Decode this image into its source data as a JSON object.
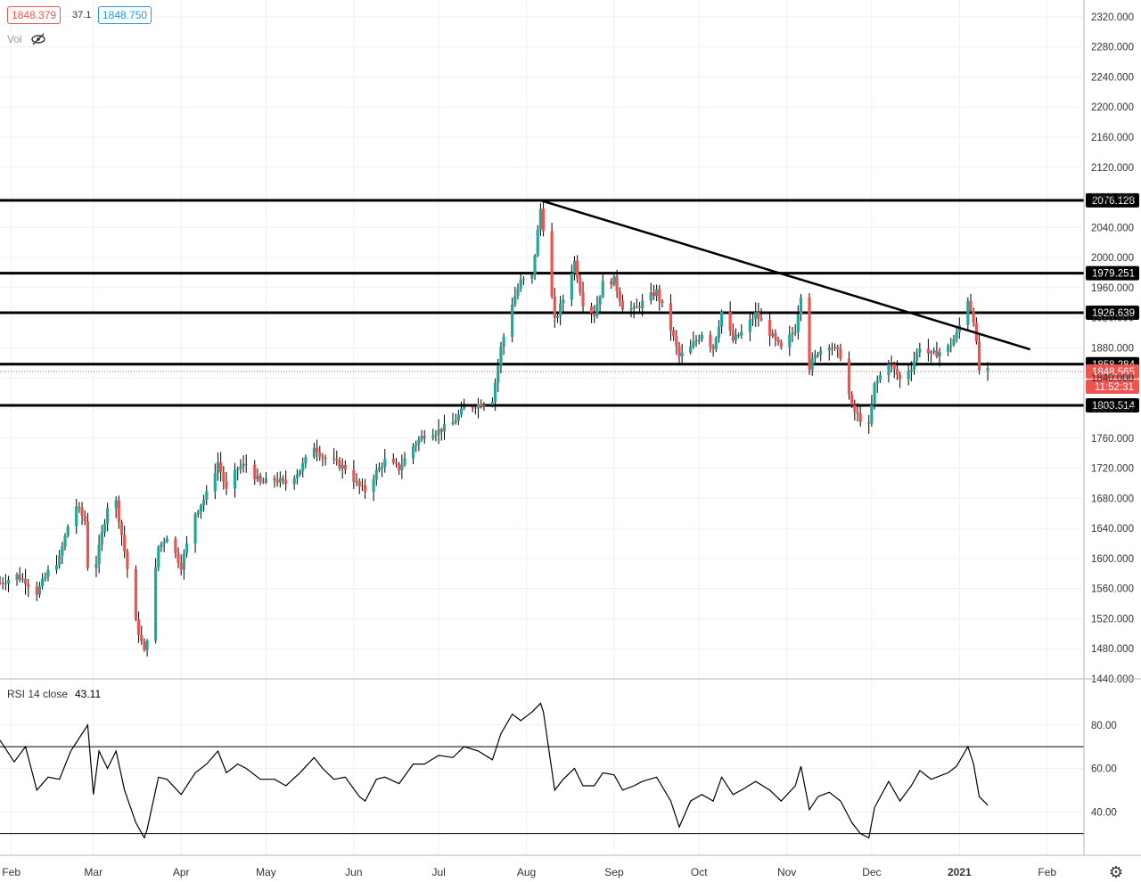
{
  "legend": {
    "bid": "1848.379",
    "spread": "37.1",
    "ask": "1848.750",
    "vol_label": "Vol",
    "vol_icon": "eye-crossed-icon"
  },
  "rsi_legend": {
    "label": "RSI 14 close",
    "value": "43.11"
  },
  "colors": {
    "up": "#26a69a",
    "down": "#ef5350",
    "line": "#000000",
    "grid": "#eef0f3",
    "axis_text": "#333333"
  },
  "chart_data": [
    {
      "type": "candlestick",
      "title": "",
      "x_range": [
        "2020-01-28",
        "2021-02-14"
      ],
      "ylim": [
        1440,
        2340
      ],
      "y_ticks": [
        1440,
        1480,
        1520,
        1560,
        1600,
        1640,
        1680,
        1720,
        1760,
        1800,
        1840,
        1880,
        1920,
        1960,
        2000,
        2040,
        2080,
        2120,
        2160,
        2200,
        2240,
        2280,
        2320
      ],
      "x_ticks": [
        {
          "date": "2020-02-01",
          "label": "Feb"
        },
        {
          "date": "2020-03-01",
          "label": "Mar"
        },
        {
          "date": "2020-04-01",
          "label": "Apr"
        },
        {
          "date": "2020-05-01",
          "label": "May"
        },
        {
          "date": "2020-06-01",
          "label": "Jun"
        },
        {
          "date": "2020-07-01",
          "label": "Jul"
        },
        {
          "date": "2020-08-01",
          "label": "Aug"
        },
        {
          "date": "2020-09-01",
          "label": "Sep"
        },
        {
          "date": "2020-10-01",
          "label": "Oct"
        },
        {
          "date": "2020-11-01",
          "label": "Nov"
        },
        {
          "date": "2020-12-01",
          "label": "Dec"
        },
        {
          "date": "2021-01-01",
          "label": "2021",
          "bold": true
        },
        {
          "date": "2021-02-01",
          "label": "Feb"
        }
      ],
      "close_series": [
        [
          "2020-01-28",
          1568
        ],
        [
          "2020-02-03",
          1577
        ],
        [
          "2020-02-06",
          1570
        ],
        [
          "2020-02-10",
          1555
        ],
        [
          "2020-02-14",
          1582
        ],
        [
          "2020-02-18",
          1600
        ],
        [
          "2020-02-21",
          1643
        ],
        [
          "2020-02-24",
          1670
        ],
        [
          "2020-02-27",
          1650
        ],
        [
          "2020-02-28",
          1590
        ],
        [
          "2020-03-02",
          1595
        ],
        [
          "2020-03-06",
          1670
        ],
        [
          "2020-03-09",
          1675
        ],
        [
          "2020-03-12",
          1610
        ],
        [
          "2020-03-16",
          1515
        ],
        [
          "2020-03-19",
          1475
        ],
        [
          "2020-03-20",
          1495
        ],
        [
          "2020-03-24",
          1615
        ],
        [
          "2020-03-27",
          1630
        ],
        [
          "2020-04-01",
          1590
        ],
        [
          "2020-04-06",
          1660
        ],
        [
          "2020-04-10",
          1685
        ],
        [
          "2020-04-14",
          1728
        ],
        [
          "2020-04-17",
          1690
        ],
        [
          "2020-04-21",
          1720
        ],
        [
          "2020-04-24",
          1725
        ],
        [
          "2020-04-29",
          1700
        ],
        [
          "2020-05-04",
          1705
        ],
        [
          "2020-05-08",
          1700
        ],
        [
          "2020-05-13",
          1718
        ],
        [
          "2020-05-18",
          1750
        ],
        [
          "2020-05-21",
          1735
        ],
        [
          "2020-05-25",
          1728
        ],
        [
          "2020-05-29",
          1720
        ],
        [
          "2020-06-03",
          1695
        ],
        [
          "2020-06-05",
          1690
        ],
        [
          "2020-06-09",
          1715
        ],
        [
          "2020-06-12",
          1730
        ],
        [
          "2020-06-17",
          1720
        ],
        [
          "2020-06-22",
          1750
        ],
        [
          "2020-06-26",
          1765
        ],
        [
          "2020-07-01",
          1770
        ],
        [
          "2020-07-06",
          1780
        ],
        [
          "2020-07-10",
          1800
        ],
        [
          "2020-07-15",
          1805
        ],
        [
          "2020-07-20",
          1812
        ],
        [
          "2020-07-23",
          1880
        ],
        [
          "2020-07-27",
          1940
        ],
        [
          "2020-07-30",
          1968
        ],
        [
          "2020-08-03",
          1975
        ],
        [
          "2020-08-06",
          2065
        ],
        [
          "2020-08-07",
          2040
        ],
        [
          "2020-08-11",
          1915
        ],
        [
          "2020-08-14",
          1945
        ],
        [
          "2020-08-18",
          1995
        ],
        [
          "2020-08-21",
          1940
        ],
        [
          "2020-08-25",
          1925
        ],
        [
          "2020-08-28",
          1965
        ],
        [
          "2020-09-01",
          1970
        ],
        [
          "2020-09-04",
          1935
        ],
        [
          "2020-09-08",
          1930
        ],
        [
          "2020-09-11",
          1940
        ],
        [
          "2020-09-16",
          1955
        ],
        [
          "2020-09-21",
          1905
        ],
        [
          "2020-09-24",
          1868
        ],
        [
          "2020-09-28",
          1880
        ],
        [
          "2020-10-02",
          1900
        ],
        [
          "2020-10-06",
          1880
        ],
        [
          "2020-10-09",
          1928
        ],
        [
          "2020-10-13",
          1890
        ],
        [
          "2020-10-16",
          1900
        ],
        [
          "2020-10-21",
          1925
        ],
        [
          "2020-10-26",
          1900
        ],
        [
          "2020-10-30",
          1878
        ],
        [
          "2020-11-04",
          1905
        ],
        [
          "2020-11-06",
          1952
        ],
        [
          "2020-11-09",
          1855
        ],
        [
          "2020-11-12",
          1875
        ],
        [
          "2020-11-16",
          1885
        ],
        [
          "2020-11-20",
          1870
        ],
        [
          "2020-11-24",
          1800
        ],
        [
          "2020-11-27",
          1785
        ],
        [
          "2020-11-30",
          1775
        ],
        [
          "2020-12-02",
          1830
        ],
        [
          "2020-12-07",
          1862
        ],
        [
          "2020-12-11",
          1838
        ],
        [
          "2020-12-15",
          1855
        ],
        [
          "2020-12-18",
          1882
        ],
        [
          "2020-12-22",
          1870
        ],
        [
          "2020-12-28",
          1880
        ],
        [
          "2020-12-31",
          1898
        ],
        [
          "2021-01-04",
          1945
        ],
        [
          "2021-01-06",
          1918
        ],
        [
          "2021-01-08",
          1850
        ],
        [
          "2021-01-11",
          1848.565
        ]
      ]
    },
    {
      "type": "line",
      "title": "",
      "series_label": "RSI 14 close",
      "ylim": [
        20,
        100
      ],
      "y_ticks": [
        40,
        60,
        80
      ],
      "levels": [
        30,
        70
      ],
      "series": [
        [
          "2020-01-28",
          73
        ],
        [
          "2020-02-02",
          63
        ],
        [
          "2020-02-06",
          70
        ],
        [
          "2020-02-10",
          50
        ],
        [
          "2020-02-14",
          56
        ],
        [
          "2020-02-18",
          55
        ],
        [
          "2020-02-22",
          68
        ],
        [
          "2020-02-26",
          76
        ],
        [
          "2020-02-28",
          80
        ],
        [
          "2020-03-01",
          48
        ],
        [
          "2020-03-03",
          68
        ],
        [
          "2020-03-06",
          60
        ],
        [
          "2020-03-09",
          68
        ],
        [
          "2020-03-12",
          50
        ],
        [
          "2020-03-16",
          35
        ],
        [
          "2020-03-19",
          28
        ],
        [
          "2020-03-20",
          32
        ],
        [
          "2020-03-24",
          56
        ],
        [
          "2020-03-27",
          55
        ],
        [
          "2020-04-01",
          48
        ],
        [
          "2020-04-06",
          58
        ],
        [
          "2020-04-10",
          62
        ],
        [
          "2020-04-14",
          68
        ],
        [
          "2020-04-17",
          58
        ],
        [
          "2020-04-21",
          62
        ],
        [
          "2020-04-24",
          60
        ],
        [
          "2020-04-29",
          55
        ],
        [
          "2020-05-04",
          55
        ],
        [
          "2020-05-08",
          52
        ],
        [
          "2020-05-13",
          58
        ],
        [
          "2020-05-18",
          65
        ],
        [
          "2020-05-21",
          60
        ],
        [
          "2020-05-25",
          55
        ],
        [
          "2020-05-29",
          56
        ],
        [
          "2020-06-03",
          47
        ],
        [
          "2020-06-05",
          45
        ],
        [
          "2020-06-09",
          55
        ],
        [
          "2020-06-12",
          56
        ],
        [
          "2020-06-17",
          53
        ],
        [
          "2020-06-22",
          62
        ],
        [
          "2020-06-26",
          62
        ],
        [
          "2020-07-01",
          66
        ],
        [
          "2020-07-06",
          65
        ],
        [
          "2020-07-10",
          70
        ],
        [
          "2020-07-15",
          68
        ],
        [
          "2020-07-20",
          64
        ],
        [
          "2020-07-23",
          76
        ],
        [
          "2020-07-27",
          85
        ],
        [
          "2020-07-30",
          82
        ],
        [
          "2020-08-03",
          86
        ],
        [
          "2020-08-06",
          90
        ],
        [
          "2020-08-07",
          86
        ],
        [
          "2020-08-11",
          50
        ],
        [
          "2020-08-14",
          55
        ],
        [
          "2020-08-18",
          60
        ],
        [
          "2020-08-21",
          52
        ],
        [
          "2020-08-25",
          52
        ],
        [
          "2020-08-28",
          58
        ],
        [
          "2020-09-01",
          57
        ],
        [
          "2020-09-04",
          50
        ],
        [
          "2020-09-08",
          52
        ],
        [
          "2020-09-11",
          54
        ],
        [
          "2020-09-16",
          56
        ],
        [
          "2020-09-21",
          45
        ],
        [
          "2020-09-24",
          33
        ],
        [
          "2020-09-28",
          45
        ],
        [
          "2020-10-02",
          48
        ],
        [
          "2020-10-06",
          45
        ],
        [
          "2020-10-09",
          56
        ],
        [
          "2020-10-13",
          48
        ],
        [
          "2020-10-16",
          50
        ],
        [
          "2020-10-21",
          54
        ],
        [
          "2020-10-26",
          50
        ],
        [
          "2020-10-30",
          45
        ],
        [
          "2020-11-04",
          52
        ],
        [
          "2020-11-06",
          61
        ],
        [
          "2020-11-09",
          41
        ],
        [
          "2020-11-12",
          47
        ],
        [
          "2020-11-16",
          49
        ],
        [
          "2020-11-20",
          45
        ],
        [
          "2020-11-24",
          35
        ],
        [
          "2020-11-27",
          30
        ],
        [
          "2020-11-30",
          28
        ],
        [
          "2020-12-02",
          42
        ],
        [
          "2020-12-07",
          54
        ],
        [
          "2020-12-11",
          45
        ],
        [
          "2020-12-15",
          52
        ],
        [
          "2020-12-18",
          59
        ],
        [
          "2020-12-22",
          55
        ],
        [
          "2020-12-28",
          58
        ],
        [
          "2020-12-31",
          61
        ],
        [
          "2021-01-04",
          70
        ],
        [
          "2021-01-06",
          62
        ],
        [
          "2021-01-08",
          47
        ],
        [
          "2021-01-11",
          43.11
        ]
      ]
    }
  ],
  "drawings": {
    "horizontal_levels": [
      {
        "price": 2076.128,
        "label": "2076.128"
      },
      {
        "price": 1979.251,
        "label": "1979.251"
      },
      {
        "price": 1926.639,
        "label": "1926.639"
      },
      {
        "price": 1858.284,
        "label": "1858.284"
      },
      {
        "price": 1803.514,
        "label": "1803.514"
      }
    ],
    "trendline": {
      "from": [
        "2020-08-06",
        2076
      ],
      "to": [
        "2021-01-26",
        1878
      ]
    },
    "last_price": {
      "price": 1848.565,
      "label": "1848.565",
      "countdown": "11:52:31"
    }
  },
  "settings_icon": "gear-icon"
}
